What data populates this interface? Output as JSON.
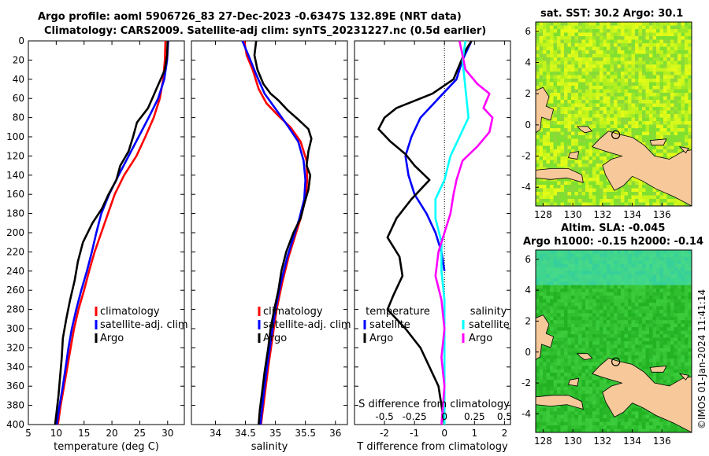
{
  "titles": {
    "line1": "Argo profile: aoml 5906726_83 27-Dec-2023 -0.6347S 132.89E (NRT data)",
    "line2": "Climatology: CARS2009. Satellite-adj clim: synTS_20231227.nc (0.5d earlier)",
    "sst": "sat. SST: 30.2 Argo: 30.1",
    "sla1": "Altim. SLA: -0.045",
    "sla2": "Argo h1000: -0.15 h2000: -0.14"
  },
  "timestamp": "©IMOS 01-Jan-2024 11:41:14",
  "colors": {
    "climatology": "#ff0000",
    "satellite": "#0000ff",
    "argo": "#000000",
    "sal_satellite": "#00ffff",
    "sal_argo": "#ff00ff",
    "land": "#f7c99a"
  },
  "chart_data": [
    {
      "type": "line",
      "id": "temperature",
      "xlabel": "temperature (deg C)",
      "ylabel": "",
      "xlim": [
        5,
        33
      ],
      "ylim": [
        0,
        400
      ],
      "xticks": [
        5,
        10,
        15,
        20,
        25,
        30
      ],
      "yticks": [
        0,
        20,
        40,
        60,
        80,
        100,
        120,
        140,
        160,
        180,
        200,
        220,
        240,
        260,
        280,
        300,
        320,
        340,
        360,
        380,
        400
      ],
      "legend": [
        "climatology",
        "satellite-adj. clim",
        "Argo"
      ],
      "series": [
        {
          "name": "climatology",
          "color": "#ff0000",
          "points": [
            [
              29.6,
              0
            ],
            [
              29.5,
              20
            ],
            [
              29.2,
              40
            ],
            [
              28.6,
              60
            ],
            [
              27.5,
              80
            ],
            [
              26.0,
              100
            ],
            [
              24.4,
              120
            ],
            [
              22.2,
              140
            ],
            [
              20.5,
              160
            ],
            [
              19.3,
              180
            ],
            [
              18.1,
              200
            ],
            [
              16.9,
              220
            ],
            [
              15.9,
              240
            ],
            [
              15.0,
              260
            ],
            [
              14.0,
              280
            ],
            [
              13.2,
              300
            ],
            [
              12.6,
              320
            ],
            [
              12.0,
              340
            ],
            [
              11.4,
              360
            ],
            [
              10.8,
              380
            ],
            [
              10.3,
              400
            ]
          ]
        },
        {
          "name": "satellite-adj. clim",
          "color": "#0000ff",
          "points": [
            [
              30.1,
              0
            ],
            [
              29.9,
              20
            ],
            [
              29.4,
              40
            ],
            [
              28.3,
              60
            ],
            [
              26.6,
              80
            ],
            [
              24.8,
              100
            ],
            [
              23.0,
              120
            ],
            [
              21.2,
              140
            ],
            [
              19.5,
              160
            ],
            [
              18.1,
              180
            ],
            [
              17.2,
              200
            ],
            [
              16.4,
              220
            ],
            [
              15.5,
              240
            ],
            [
              14.5,
              260
            ],
            [
              13.6,
              280
            ],
            [
              12.8,
              300
            ],
            [
              12.2,
              320
            ],
            [
              11.7,
              340
            ],
            [
              11.2,
              360
            ],
            [
              10.6,
              380
            ],
            [
              10.1,
              400
            ]
          ]
        },
        {
          "name": "Argo",
          "color": "#000000",
          "points": [
            [
              30.0,
              0
            ],
            [
              29.9,
              15
            ],
            [
              29.5,
              30
            ],
            [
              28.0,
              50
            ],
            [
              26.5,
              70
            ],
            [
              24.5,
              85
            ],
            [
              23.8,
              100
            ],
            [
              23.0,
              115
            ],
            [
              21.5,
              130
            ],
            [
              20.8,
              145
            ],
            [
              19.4,
              160
            ],
            [
              18.2,
              175
            ],
            [
              16.5,
              190
            ],
            [
              14.8,
              210
            ],
            [
              13.9,
              230
            ],
            [
              13.3,
              250
            ],
            [
              12.5,
              270
            ],
            [
              11.8,
              290
            ],
            [
              11.2,
              310
            ],
            [
              11.0,
              330
            ],
            [
              10.7,
              350
            ],
            [
              10.4,
              370
            ],
            [
              10.0,
              390
            ],
            [
              9.8,
              400
            ]
          ]
        }
      ]
    },
    {
      "type": "line",
      "id": "salinity",
      "xlabel": "salinity",
      "xlim": [
        33.6,
        36.2
      ],
      "ylim": [
        0,
        400
      ],
      "xticks": [
        34,
        34.5,
        35,
        35.5,
        36
      ],
      "legend": [
        "climatology",
        "satellite-adj. clim",
        "Argo"
      ],
      "series": [
        {
          "name": "climatology",
          "color": "#ff0000",
          "points": [
            [
              34.48,
              0
            ],
            [
              34.52,
              15
            ],
            [
              34.62,
              30
            ],
            [
              34.72,
              50
            ],
            [
              34.85,
              65
            ],
            [
              35.05,
              78
            ],
            [
              35.25,
              90
            ],
            [
              35.42,
              105
            ],
            [
              35.52,
              125
            ],
            [
              35.53,
              145
            ],
            [
              35.5,
              165
            ],
            [
              35.42,
              185
            ],
            [
              35.32,
              205
            ],
            [
              35.22,
              225
            ],
            [
              35.12,
              250
            ],
            [
              35.02,
              280
            ],
            [
              34.95,
              310
            ],
            [
              34.88,
              340
            ],
            [
              34.82,
              370
            ],
            [
              34.76,
              400
            ]
          ]
        },
        {
          "name": "satellite-adj. clim",
          "color": "#0000ff",
          "points": [
            [
              34.45,
              0
            ],
            [
              34.55,
              15
            ],
            [
              34.68,
              35
            ],
            [
              34.82,
              55
            ],
            [
              35.05,
              75
            ],
            [
              35.22,
              90
            ],
            [
              35.38,
              105
            ],
            [
              35.47,
              125
            ],
            [
              35.5,
              145
            ],
            [
              35.48,
              165
            ],
            [
              35.4,
              185
            ],
            [
              35.3,
              205
            ],
            [
              35.2,
              225
            ],
            [
              35.1,
              250
            ],
            [
              35.0,
              280
            ],
            [
              34.93,
              310
            ],
            [
              34.86,
              340
            ],
            [
              34.8,
              370
            ],
            [
              34.75,
              400
            ]
          ]
        },
        {
          "name": "Argo",
          "color": "#000000",
          "points": [
            [
              34.68,
              0
            ],
            [
              34.65,
              15
            ],
            [
              34.7,
              30
            ],
            [
              34.8,
              45
            ],
            [
              34.92,
              55
            ],
            [
              35.05,
              62
            ],
            [
              35.2,
              72
            ],
            [
              35.38,
              82
            ],
            [
              35.55,
              92
            ],
            [
              35.6,
              102
            ],
            [
              35.55,
              115
            ],
            [
              35.52,
              130
            ],
            [
              35.58,
              140
            ],
            [
              35.55,
              155
            ],
            [
              35.48,
              170
            ],
            [
              35.42,
              185
            ],
            [
              35.3,
              200
            ],
            [
              35.18,
              220
            ],
            [
              35.1,
              240
            ],
            [
              35.05,
              260
            ],
            [
              34.98,
              280
            ],
            [
              34.92,
              300
            ],
            [
              34.88,
              320
            ],
            [
              34.82,
              345
            ],
            [
              34.78,
              365
            ],
            [
              34.74,
              385
            ],
            [
              34.72,
              400
            ]
          ]
        }
      ]
    },
    {
      "type": "line",
      "id": "difference",
      "xlabel": "T difference from climatology",
      "xlabel_top": "S difference from climatology",
      "xlim": [
        -3,
        2.2
      ],
      "ylim": [
        0,
        400
      ],
      "xticks": [
        -2,
        -1,
        0,
        1,
        2
      ],
      "xticks_top": [
        -0.5,
        -0.25,
        0,
        0.25,
        0.5
      ],
      "legend_left_title": "temperature",
      "legend_right_title": "salinity",
      "legend": [
        "satellite",
        "Argo"
      ],
      "series": [
        {
          "name": "temperature satellite",
          "color": "#0000ff",
          "points": [
            [
              0.9,
              0
            ],
            [
              0.6,
              20
            ],
            [
              0.4,
              40
            ],
            [
              -0.2,
              60
            ],
            [
              -0.8,
              80
            ],
            [
              -1.1,
              100
            ],
            [
              -1.3,
              120
            ],
            [
              -1.2,
              140
            ],
            [
              -1.0,
              160
            ],
            [
              -0.6,
              180
            ],
            [
              -0.3,
              200
            ],
            [
              -0.1,
              220
            ],
            [
              0.0,
              240
            ]
          ]
        },
        {
          "name": "temperature Argo",
          "color": "#000000",
          "points": [
            [
              0.9,
              0
            ],
            [
              0.7,
              10
            ],
            [
              0.5,
              25
            ],
            [
              0.3,
              40
            ],
            [
              -0.4,
              55
            ],
            [
              -1.6,
              70
            ],
            [
              -2.0,
              80
            ],
            [
              -2.2,
              92
            ],
            [
              -1.8,
              105
            ],
            [
              -1.3,
              118
            ],
            [
              -1.0,
              130
            ],
            [
              -0.5,
              145
            ],
            [
              -1.1,
              165
            ],
            [
              -1.6,
              185
            ],
            [
              -1.9,
              205
            ],
            [
              -1.5,
              225
            ],
            [
              -1.4,
              245
            ],
            [
              -1.7,
              265
            ],
            [
              -1.9,
              280
            ],
            [
              -1.3,
              300
            ],
            [
              -0.8,
              320
            ],
            [
              -0.5,
              340
            ],
            [
              -0.2,
              360
            ],
            [
              -0.1,
              380
            ],
            [
              0.0,
              400
            ]
          ]
        },
        {
          "name": "salinity satellite",
          "color": "#00ffff",
          "points": [
            [
              0.7,
              0
            ],
            [
              0.6,
              20
            ],
            [
              0.7,
              50
            ],
            [
              0.8,
              80
            ],
            [
              0.5,
              100
            ],
            [
              0.2,
              120
            ],
            [
              0.0,
              145
            ],
            [
              -0.3,
              165
            ],
            [
              -0.3,
              185
            ],
            [
              -0.1,
              210
            ],
            [
              -0.1,
              240
            ],
            [
              0.0,
              270
            ],
            [
              0.0,
              300
            ],
            [
              0.0,
              330
            ],
            [
              0.0,
              360
            ],
            [
              0.0,
              400
            ]
          ]
        },
        {
          "name": "salinity Argo",
          "color": "#ff00ff",
          "points": [
            [
              0.5,
              0
            ],
            [
              0.6,
              15
            ],
            [
              0.7,
              30
            ],
            [
              1.1,
              45
            ],
            [
              1.5,
              55
            ],
            [
              1.3,
              70
            ],
            [
              1.6,
              80
            ],
            [
              1.5,
              95
            ],
            [
              1.1,
              110
            ],
            [
              0.6,
              125
            ],
            [
              0.4,
              145
            ],
            [
              0.3,
              160
            ],
            [
              0.2,
              180
            ],
            [
              0.0,
              200
            ],
            [
              -0.2,
              220
            ],
            [
              -0.3,
              245
            ],
            [
              -0.1,
              270
            ],
            [
              0.0,
              300
            ],
            [
              -0.1,
              330
            ],
            [
              0.0,
              360
            ],
            [
              -0.1,
              400
            ]
          ]
        }
      ]
    },
    {
      "type": "heatmap",
      "id": "sst_map",
      "title": "sat. SST: 30.2 Argo: 30.1",
      "xlim": [
        127.5,
        138
      ],
      "ylim": [
        -5.2,
        6.6
      ],
      "xticks": [
        128,
        130,
        132,
        134,
        136
      ],
      "yticks": [
        -4,
        -2,
        0,
        2,
        4,
        6
      ],
      "marker": [
        132.89,
        -0.63
      ]
    },
    {
      "type": "heatmap",
      "id": "sla_map",
      "title": "Altim. SLA: -0.045",
      "xlim": [
        127.5,
        138
      ],
      "ylim": [
        -5.2,
        6.6
      ],
      "xticks": [
        128,
        130,
        132,
        134,
        136
      ],
      "yticks": [
        -4,
        -2,
        0,
        2,
        4,
        6
      ],
      "marker": [
        132.89,
        -0.63
      ]
    }
  ]
}
